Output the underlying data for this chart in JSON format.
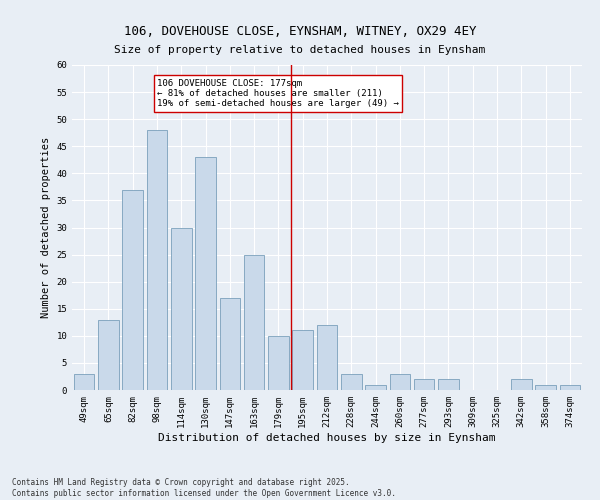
{
  "title": "106, DOVEHOUSE CLOSE, EYNSHAM, WITNEY, OX29 4EY",
  "subtitle": "Size of property relative to detached houses in Eynsham",
  "xlabel": "Distribution of detached houses by size in Eynsham",
  "ylabel": "Number of detached properties",
  "bar_color": "#c9d9ea",
  "bar_edge_color": "#7aa0bb",
  "background_color": "#e8eef5",
  "grid_color": "#ffffff",
  "categories": [
    "49sqm",
    "65sqm",
    "82sqm",
    "98sqm",
    "114sqm",
    "130sqm",
    "147sqm",
    "163sqm",
    "179sqm",
    "195sqm",
    "212sqm",
    "228sqm",
    "244sqm",
    "260sqm",
    "277sqm",
    "293sqm",
    "309sqm",
    "325sqm",
    "342sqm",
    "358sqm",
    "374sqm"
  ],
  "values": [
    3,
    13,
    37,
    48,
    30,
    43,
    17,
    25,
    10,
    11,
    12,
    3,
    1,
    3,
    2,
    2,
    0,
    0,
    2,
    1,
    1
  ],
  "vline_x": 8.5,
  "vline_color": "#cc0000",
  "annotation_text": "106 DOVEHOUSE CLOSE: 177sqm\n← 81% of detached houses are smaller (211)\n19% of semi-detached houses are larger (49) →",
  "annotation_box_color": "#ffffff",
  "annotation_edge_color": "#cc0000",
  "annotation_fontsize": 6.5,
  "title_fontsize": 9,
  "xlabel_fontsize": 8,
  "ylabel_fontsize": 7.5,
  "tick_fontsize": 6.5,
  "footer_text": "Contains HM Land Registry data © Crown copyright and database right 2025.\nContains public sector information licensed under the Open Government Licence v3.0.",
  "ylim": [
    0,
    60
  ],
  "yticks": [
    0,
    5,
    10,
    15,
    20,
    25,
    30,
    35,
    40,
    45,
    50,
    55,
    60
  ]
}
